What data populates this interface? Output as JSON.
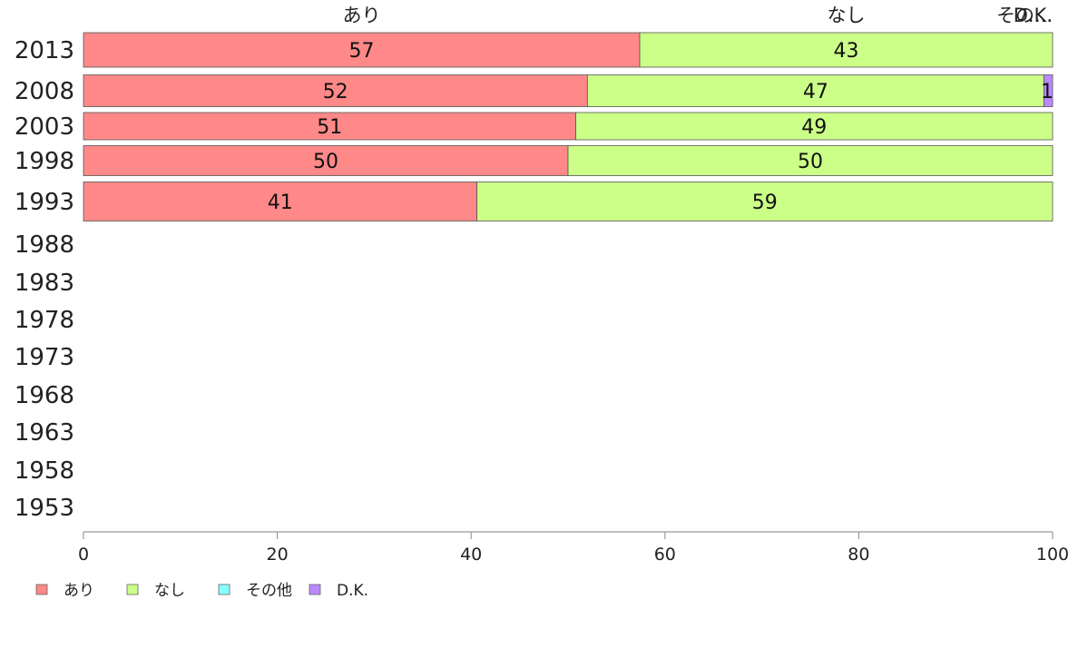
{
  "chart_data": {
    "type": "bar",
    "orientation": "horizontal",
    "stacked": true,
    "categories": [
      "2013",
      "2008",
      "2003",
      "1998",
      "1993",
      "1988",
      "1983",
      "1978",
      "1973",
      "1968",
      "1963",
      "1958",
      "1953"
    ],
    "series": [
      {
        "name": "あり",
        "color": "#ff8888",
        "values": [
          57.4,
          52.0,
          50.8,
          50.0,
          40.6,
          null,
          null,
          null,
          null,
          null,
          null,
          null,
          null
        ],
        "labels": [
          "57",
          "52",
          "51",
          "50",
          "41",
          "",
          "",
          "",
          "",
          "",
          "",
          "",
          ""
        ]
      },
      {
        "name": "なし",
        "color": "#ccff88",
        "values": [
          42.6,
          47.1,
          49.2,
          50.0,
          59.4,
          null,
          null,
          null,
          null,
          null,
          null,
          null,
          null
        ],
        "labels": [
          "43",
          "47",
          "49",
          "50",
          "59",
          "",
          "",
          "",
          "",
          "",
          "",
          "",
          ""
        ]
      },
      {
        "name": "その他",
        "color": "#88ffff",
        "values": [
          0,
          0,
          0,
          0,
          0,
          null,
          null,
          null,
          null,
          null,
          null,
          null,
          null
        ],
        "labels": [
          "",
          "",
          "",
          "",
          "",
          "",
          "",
          "",
          "",
          "",
          "",
          "",
          ""
        ]
      },
      {
        "name": "D.K.",
        "color": "#bb88ff",
        "values": [
          0,
          0.9,
          0,
          0,
          0,
          null,
          null,
          null,
          null,
          null,
          null,
          null,
          null
        ],
        "labels": [
          "",
          "1",
          "",
          "",
          "",
          "",
          "",
          "",
          "",
          "",
          "",
          "",
          ""
        ]
      }
    ],
    "top_labels": [
      {
        "text": "あり",
        "value": 28.7
      },
      {
        "text": "なし",
        "value": 78.7
      },
      {
        "text": "その他",
        "value": 99.5
      },
      {
        "text": "D.K.",
        "value": 100
      }
    ],
    "top_labels_display": [
      "あり",
      "なし",
      "その...",
      "D.K."
    ],
    "xlim": [
      0,
      100
    ],
    "xticks": [
      "0",
      "20",
      "40",
      "60",
      "80",
      "100"
    ],
    "legend_position": "bottom-left",
    "grid": false,
    "title": "",
    "xlabel": "",
    "ylabel": ""
  }
}
